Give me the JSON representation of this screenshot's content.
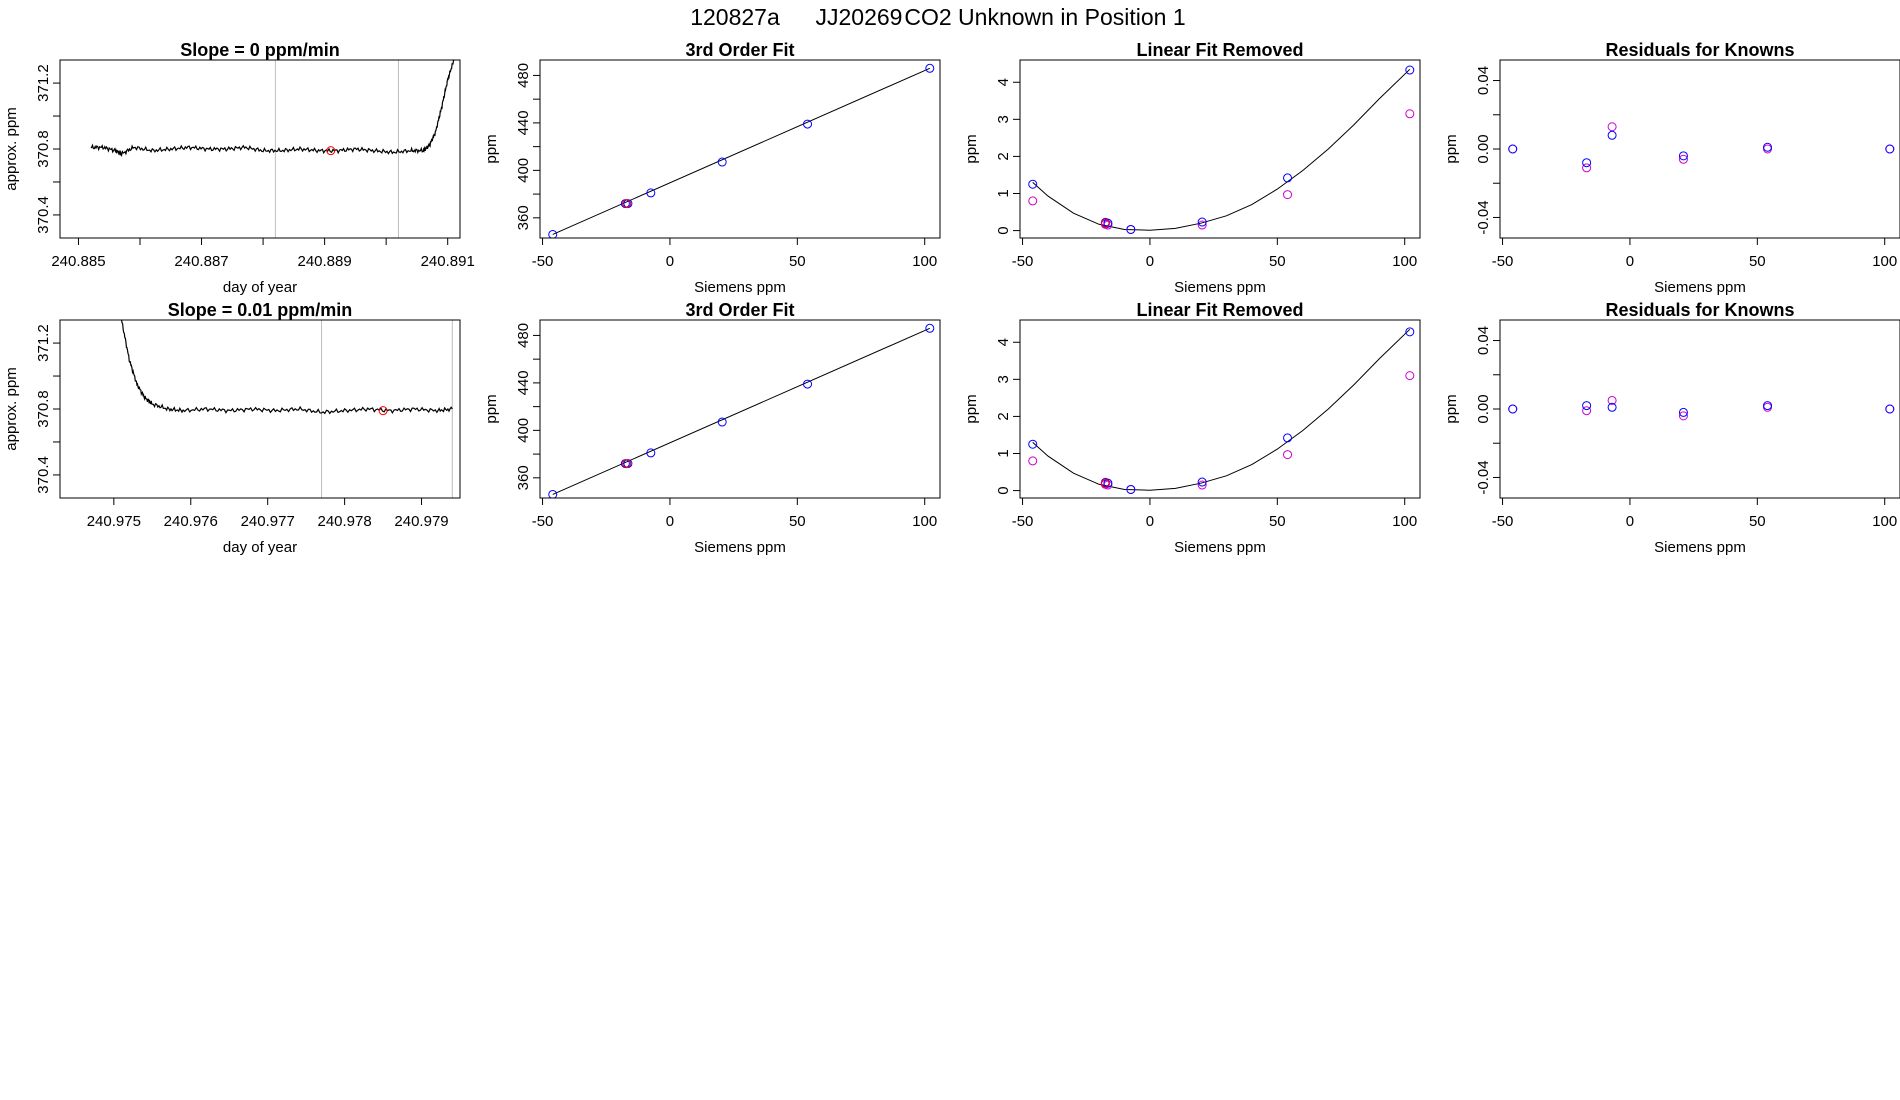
{
  "figure_title": {
    "date_code": "120827a",
    "tank_id": "JJ20269",
    "label": "CO2 Unknown in Position  1"
  },
  "colors": {
    "trace": "#000000",
    "marker": "#ff0000",
    "known": "#0000ff",
    "residual": "#cc00cc",
    "vline": "#bebebe",
    "axis": "#000000"
  },
  "chart_data": [
    {
      "type": "line",
      "title": "Slope =  0  ppm/min",
      "xlabel": "day of year",
      "ylabel": "approx. ppm",
      "xlim": [
        240.8847,
        240.8912
      ],
      "ylim": [
        370.26,
        371.34
      ],
      "xticks": [
        240.885,
        240.886,
        240.887,
        240.888,
        240.889,
        240.89,
        240.891
      ],
      "xtick_labels": [
        "240.885",
        "",
        "240.887",
        "",
        "240.889",
        "",
        "240.891"
      ],
      "yticks": [
        370.4,
        370.6,
        370.8,
        371.0,
        371.2
      ],
      "ytick_labels": [
        "370.4",
        "",
        "370.8",
        "",
        "371.2"
      ],
      "vlines": [
        240.8882,
        240.8902
      ],
      "series": [
        {
          "x": [
            240.8852,
            240.8854,
            240.8856,
            240.8857,
            240.8859,
            240.8862,
            240.8865,
            240.8868,
            240.8871,
            240.8874,
            240.8877,
            240.888,
            240.8883,
            240.8886,
            240.8889,
            240.8892,
            240.8895,
            240.8898,
            240.8901,
            240.8904,
            240.8906,
            240.8907,
            240.8908,
            240.8909,
            240.891,
            240.8911
          ],
          "y": [
            370.81,
            370.81,
            370.79,
            370.77,
            370.81,
            370.79,
            370.8,
            370.81,
            370.8,
            370.8,
            370.81,
            370.79,
            370.79,
            370.8,
            370.79,
            370.79,
            370.8,
            370.79,
            370.78,
            370.79,
            370.79,
            370.82,
            370.9,
            371.05,
            371.22,
            371.34
          ]
        }
      ],
      "marker_points": [
        {
          "x": 240.8891,
          "y": 370.79
        }
      ]
    },
    {
      "type": "scatter",
      "title": "3rd Order Fit",
      "xlabel": "Siemens ppm",
      "ylabel": "ppm",
      "xlim": [
        -51,
        106
      ],
      "ylim": [
        343,
        493
      ],
      "xticks": [
        -50,
        0,
        50,
        100
      ],
      "xtick_labels": [
        "-50",
        "0",
        "50",
        "100"
      ],
      "yticks": [
        360,
        380,
        400,
        420,
        440,
        460,
        480
      ],
      "ytick_labels": [
        "360",
        "",
        "400",
        "",
        "440",
        "",
        "480"
      ],
      "fit_line": {
        "x": [
          -46,
          102
        ],
        "y": [
          346,
          486
        ]
      },
      "known_points": {
        "x": [
          -46,
          -17.5,
          -16.5,
          -7.5,
          20.5,
          54,
          102
        ],
        "y": [
          346,
          372,
          372,
          381,
          407,
          439,
          486
        ]
      },
      "marker_points": [
        {
          "x": -17,
          "y": 372
        }
      ]
    },
    {
      "type": "scatter",
      "title": "Linear Fit Removed",
      "xlabel": "Siemens ppm",
      "ylabel": "ppm",
      "xlim": [
        -51,
        106
      ],
      "ylim": [
        -0.2,
        4.6
      ],
      "xticks": [
        -50,
        0,
        50,
        100
      ],
      "xtick_labels": [
        "-50",
        "0",
        "50",
        "100"
      ],
      "yticks": [
        0,
        1,
        2,
        3,
        4
      ],
      "ytick_labels": [
        "0",
        "1",
        "2",
        "3",
        "4"
      ],
      "fit_curve": {
        "x": [
          -46,
          -40,
          -30,
          -20,
          -10,
          0,
          10,
          20,
          30,
          40,
          50,
          60,
          70,
          80,
          90,
          102
        ],
        "y": [
          1.3,
          0.93,
          0.47,
          0.17,
          0.03,
          0.01,
          0.06,
          0.2,
          0.4,
          0.7,
          1.12,
          1.62,
          2.2,
          2.85,
          3.55,
          4.35
        ]
      },
      "known_points": {
        "x": [
          -46,
          -17.5,
          -16.5,
          -7.5,
          20.5,
          54,
          102
        ],
        "y": [
          1.25,
          0.22,
          0.2,
          0.03,
          0.23,
          1.42,
          4.33
        ]
      },
      "residual_points": {
        "x": [
          -46,
          -17.5,
          -16.5,
          -7.5,
          20.5,
          54,
          102
        ],
        "y": [
          0.8,
          0.17,
          0.15,
          0.03,
          0.15,
          0.97,
          3.15
        ]
      },
      "marker_points": [
        {
          "x": -17.5,
          "y": 0.2
        }
      ]
    },
    {
      "type": "scatter",
      "title": "Residuals for Knowns",
      "xlabel": "Siemens ppm",
      "ylabel": "ppm",
      "xlim": [
        -51,
        106
      ],
      "ylim": [
        -0.052,
        0.052
      ],
      "xticks": [
        -50,
        0,
        50,
        100
      ],
      "xtick_labels": [
        "-50",
        "0",
        "50",
        "100"
      ],
      "yticks": [
        -0.04,
        -0.02,
        0,
        0.02,
        0.04
      ],
      "ytick_labels": [
        "-0.04",
        "",
        "0.00",
        "",
        "0.04"
      ],
      "known_points": {
        "x": [
          -46,
          -17,
          -7,
          21,
          54,
          102
        ],
        "y": [
          0.0,
          -0.008,
          0.008,
          -0.004,
          0.001,
          0.0
        ]
      },
      "residual_points": {
        "x": [
          -46,
          -17,
          -7,
          21,
          54,
          102
        ],
        "y": [
          0.0,
          -0.011,
          0.013,
          -0.006,
          0.0,
          0.0
        ]
      }
    },
    {
      "type": "line",
      "title": "Slope =  0.01  ppm/min",
      "xlabel": "day of year",
      "ylabel": "approx. ppm",
      "xlim": [
        240.9743,
        240.9795
      ],
      "ylim": [
        370.26,
        371.34
      ],
      "xticks": [
        240.975,
        240.976,
        240.977,
        240.978,
        240.979
      ],
      "xtick_labels": [
        "240.975",
        "240.976",
        "240.977",
        "240.978",
        "240.979"
      ],
      "yticks": [
        370.4,
        370.6,
        370.8,
        371.0,
        371.2
      ],
      "ytick_labels": [
        "370.4",
        "",
        "370.8",
        "",
        "371.2"
      ],
      "vlines": [
        240.9777,
        240.9794
      ],
      "series": [
        {
          "x": [
            240.9751,
            240.9752,
            240.9753,
            240.9754,
            240.9755,
            240.9757,
            240.9759,
            240.9762,
            240.9765,
            240.9768,
            240.9771,
            240.9774,
            240.9777,
            240.978,
            240.9783,
            240.9786,
            240.9789,
            240.9792,
            240.9794
          ],
          "y": [
            371.34,
            371.1,
            370.95,
            370.87,
            370.83,
            370.8,
            370.79,
            370.8,
            370.79,
            370.8,
            370.79,
            370.8,
            370.78,
            370.79,
            370.8,
            370.79,
            370.8,
            370.79,
            370.8
          ]
        }
      ],
      "marker_points": [
        {
          "x": 240.9785,
          "y": 370.79
        }
      ]
    },
    {
      "type": "scatter",
      "title": "3rd Order Fit",
      "xlabel": "Siemens ppm",
      "ylabel": "ppm",
      "xlim": [
        -51,
        106
      ],
      "ylim": [
        343,
        493
      ],
      "xticks": [
        -50,
        0,
        50,
        100
      ],
      "xtick_labels": [
        "-50",
        "0",
        "50",
        "100"
      ],
      "yticks": [
        360,
        380,
        400,
        420,
        440,
        460,
        480
      ],
      "ytick_labels": [
        "360",
        "",
        "400",
        "",
        "440",
        "",
        "480"
      ],
      "fit_line": {
        "x": [
          -46,
          102
        ],
        "y": [
          346,
          486
        ]
      },
      "known_points": {
        "x": [
          -46,
          -17.5,
          -16.5,
          -7.5,
          20.5,
          54,
          102
        ],
        "y": [
          346,
          372,
          372,
          381,
          407,
          439,
          486
        ]
      },
      "marker_points": [
        {
          "x": -17,
          "y": 372
        }
      ]
    },
    {
      "type": "scatter",
      "title": "Linear Fit Removed",
      "xlabel": "Siemens ppm",
      "ylabel": "ppm",
      "xlim": [
        -51,
        106
      ],
      "ylim": [
        -0.2,
        4.6
      ],
      "xticks": [
        -50,
        0,
        50,
        100
      ],
      "xtick_labels": [
        "-50",
        "0",
        "50",
        "100"
      ],
      "yticks": [
        0,
        1,
        2,
        3,
        4
      ],
      "ytick_labels": [
        "0",
        "1",
        "2",
        "3",
        "4"
      ],
      "fit_curve": {
        "x": [
          -46,
          -40,
          -30,
          -20,
          -10,
          0,
          10,
          20,
          30,
          40,
          50,
          60,
          70,
          80,
          90,
          102
        ],
        "y": [
          1.3,
          0.93,
          0.47,
          0.17,
          0.03,
          0.01,
          0.06,
          0.2,
          0.4,
          0.7,
          1.12,
          1.62,
          2.2,
          2.85,
          3.55,
          4.35
        ]
      },
      "known_points": {
        "x": [
          -46,
          -17.5,
          -16.5,
          -7.5,
          20.5,
          54,
          102
        ],
        "y": [
          1.25,
          0.22,
          0.2,
          0.03,
          0.23,
          1.42,
          4.28
        ]
      },
      "residual_points": {
        "x": [
          -46,
          -17.5,
          -16.5,
          -7.5,
          20.5,
          54,
          102
        ],
        "y": [
          0.8,
          0.17,
          0.15,
          0.03,
          0.15,
          0.97,
          3.1
        ]
      },
      "marker_points": [
        {
          "x": -17.5,
          "y": 0.2
        }
      ]
    },
    {
      "type": "scatter",
      "title": "Residuals for Knowns",
      "xlabel": "Siemens ppm",
      "ylabel": "ppm",
      "xlim": [
        -51,
        106
      ],
      "ylim": [
        -0.052,
        0.052
      ],
      "xticks": [
        -50,
        0,
        50,
        100
      ],
      "xtick_labels": [
        "-50",
        "0",
        "50",
        "100"
      ],
      "yticks": [
        -0.04,
        -0.02,
        0,
        0.02,
        0.04
      ],
      "ytick_labels": [
        "-0.04",
        "",
        "0.00",
        "",
        "0.04"
      ],
      "known_points": {
        "x": [
          -46,
          -17,
          -7,
          21,
          54,
          102
        ],
        "y": [
          0.0,
          0.002,
          0.001,
          -0.002,
          0.002,
          0.0
        ]
      },
      "residual_points": {
        "x": [
          -46,
          -17,
          -7,
          21,
          54,
          102
        ],
        "y": [
          0.0,
          -0.001,
          0.005,
          -0.004,
          0.001,
          0.0
        ]
      }
    }
  ]
}
